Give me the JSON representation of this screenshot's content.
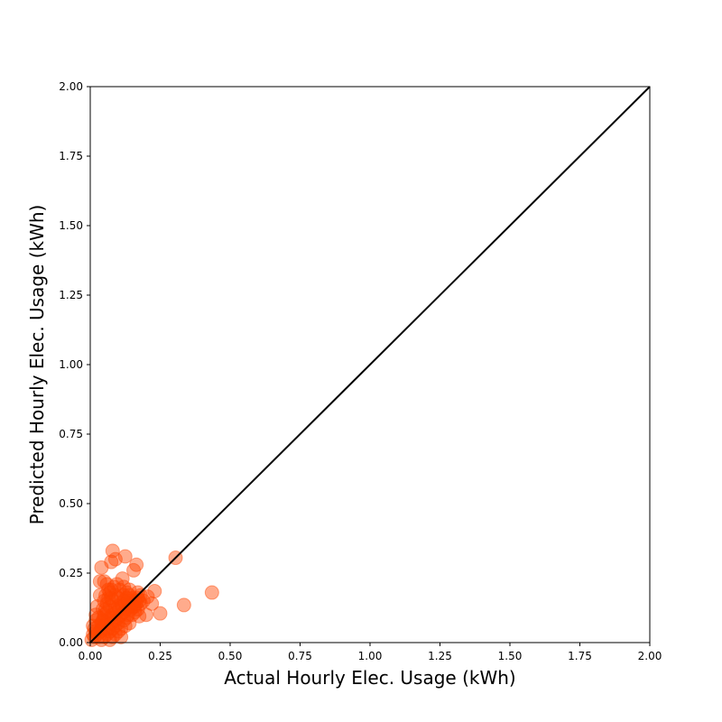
{
  "chart_data": {
    "type": "scatter",
    "title": "",
    "xlabel": "Actual Hourly Elec. Usage (kWh)",
    "ylabel": "Predicted Hourly Elec. Usage (kWh)",
    "xlim": [
      0,
      2
    ],
    "ylim": [
      0,
      2
    ],
    "xticks": [
      "0.00",
      "0.25",
      "0.50",
      "0.75",
      "1.00",
      "1.25",
      "1.50",
      "1.75",
      "2.00"
    ],
    "yticks": [
      "0.00",
      "0.25",
      "0.50",
      "0.75",
      "1.00",
      "1.25",
      "1.50",
      "1.75",
      "2.00"
    ],
    "grid": false,
    "legend": "none",
    "marker_color": "#ff4500",
    "marker_alpha": 0.45,
    "reference_line": {
      "from": [
        0,
        0
      ],
      "to": [
        2,
        2
      ],
      "color": "#000000"
    },
    "series": [
      {
        "points": [
          [
            0.08,
            0.33
          ],
          [
            0.125,
            0.31
          ],
          [
            0.305,
            0.305
          ],
          [
            0.09,
            0.3
          ],
          [
            0.075,
            0.29
          ],
          [
            0.165,
            0.28
          ],
          [
            0.04,
            0.27
          ],
          [
            0.155,
            0.26
          ],
          [
            0.115,
            0.23
          ],
          [
            0.035,
            0.22
          ],
          [
            0.05,
            0.22
          ],
          [
            0.06,
            0.21
          ],
          [
            0.23,
            0.185
          ],
          [
            0.435,
            0.18
          ],
          [
            0.035,
            0.17
          ],
          [
            0.205,
            0.165
          ],
          [
            0.17,
            0.18
          ],
          [
            0.22,
            0.14
          ],
          [
            0.335,
            0.135
          ],
          [
            0.25,
            0.105
          ],
          [
            0.2,
            0.1
          ],
          [
            0.175,
            0.095
          ],
          [
            0.14,
            0.07
          ],
          [
            0.11,
            0.02
          ],
          [
            0.025,
            0.13
          ],
          [
            0.02,
            0.08
          ],
          [
            0.015,
            0.05
          ],
          [
            0.01,
            0.03
          ],
          [
            0.005,
            0.01
          ],
          [
            0.03,
            0.02
          ],
          [
            0.04,
            0.05
          ],
          [
            0.045,
            0.08
          ],
          [
            0.05,
            0.1
          ],
          [
            0.055,
            0.12
          ],
          [
            0.06,
            0.14
          ],
          [
            0.065,
            0.16
          ],
          [
            0.07,
            0.18
          ],
          [
            0.075,
            0.19
          ],
          [
            0.085,
            0.2
          ],
          [
            0.095,
            0.21
          ],
          [
            0.105,
            0.19
          ],
          [
            0.12,
            0.2
          ],
          [
            0.13,
            0.18
          ],
          [
            0.14,
            0.17
          ],
          [
            0.15,
            0.16
          ],
          [
            0.16,
            0.15
          ],
          [
            0.18,
            0.14
          ],
          [
            0.19,
            0.15
          ],
          [
            0.17,
            0.12
          ],
          [
            0.16,
            0.11
          ],
          [
            0.15,
            0.1
          ],
          [
            0.13,
            0.09
          ],
          [
            0.12,
            0.08
          ],
          [
            0.1,
            0.07
          ],
          [
            0.09,
            0.06
          ],
          [
            0.08,
            0.05
          ],
          [
            0.07,
            0.04
          ],
          [
            0.06,
            0.03
          ],
          [
            0.05,
            0.02
          ],
          [
            0.04,
            0.01
          ],
          [
            0.09,
            0.12
          ],
          [
            0.1,
            0.13
          ],
          [
            0.11,
            0.14
          ],
          [
            0.12,
            0.15
          ],
          [
            0.13,
            0.16
          ],
          [
            0.1,
            0.16
          ],
          [
            0.09,
            0.17
          ],
          [
            0.08,
            0.15
          ],
          [
            0.07,
            0.13
          ],
          [
            0.06,
            0.11
          ],
          [
            0.05,
            0.09
          ],
          [
            0.04,
            0.07
          ],
          [
            0.03,
            0.06
          ],
          [
            0.02,
            0.04
          ],
          [
            0.015,
            0.02
          ],
          [
            0.11,
            0.1
          ],
          [
            0.12,
            0.11
          ],
          [
            0.13,
            0.12
          ],
          [
            0.14,
            0.13
          ],
          [
            0.15,
            0.14
          ],
          [
            0.16,
            0.13
          ],
          [
            0.17,
            0.16
          ],
          [
            0.18,
            0.17
          ],
          [
            0.14,
            0.19
          ],
          [
            0.12,
            0.17
          ],
          [
            0.1,
            0.09
          ],
          [
            0.09,
            0.08
          ],
          [
            0.08,
            0.1
          ],
          [
            0.07,
            0.09
          ],
          [
            0.06,
            0.07
          ],
          [
            0.05,
            0.06
          ],
          [
            0.035,
            0.04
          ],
          [
            0.025,
            0.03
          ],
          [
            0.065,
            0.05
          ],
          [
            0.075,
            0.07
          ],
          [
            0.085,
            0.09
          ],
          [
            0.095,
            0.11
          ],
          [
            0.105,
            0.12
          ],
          [
            0.115,
            0.13
          ],
          [
            0.125,
            0.14
          ],
          [
            0.135,
            0.15
          ],
          [
            0.145,
            0.12
          ],
          [
            0.155,
            0.13
          ],
          [
            0.165,
            0.14
          ],
          [
            0.175,
            0.15
          ],
          [
            0.11,
            0.05
          ],
          [
            0.1,
            0.04
          ],
          [
            0.09,
            0.03
          ],
          [
            0.08,
            0.02
          ],
          [
            0.07,
            0.01
          ],
          [
            0.05,
            0.15
          ],
          [
            0.045,
            0.12
          ],
          [
            0.055,
            0.17
          ],
          [
            0.065,
            0.19
          ],
          [
            0.075,
            0.16
          ],
          [
            0.01,
            0.06
          ],
          [
            0.02,
            0.1
          ],
          [
            0.03,
            0.09
          ],
          [
            0.135,
            0.1
          ],
          [
            0.125,
            0.06
          ]
        ]
      }
    ]
  }
}
